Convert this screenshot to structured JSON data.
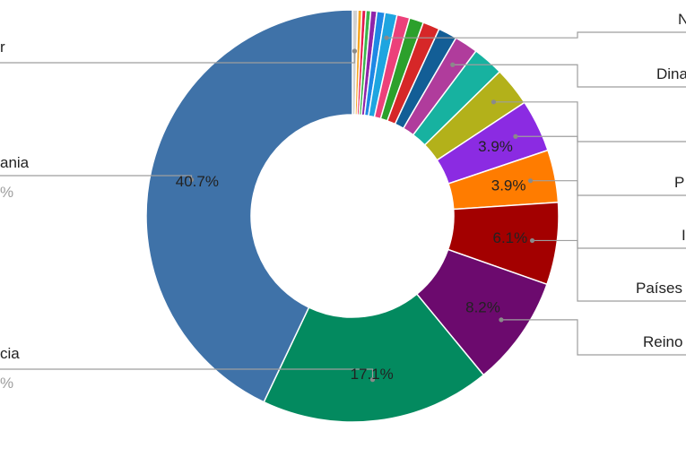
{
  "chart_data": {
    "type": "pie",
    "donut": true,
    "slices": [
      {
        "label": "…r",
        "value": 0.4,
        "color": "#d0d0d0",
        "pct_text": ""
      },
      {
        "label": "",
        "value": 0.3,
        "color": "#f5a623",
        "pct_text": ""
      },
      {
        "label": "",
        "value": 0.3,
        "color": "#e6194b",
        "pct_text": ""
      },
      {
        "label": "",
        "value": 0.35,
        "color": "#3cb44b",
        "pct_text": ""
      },
      {
        "label": "",
        "value": 0.45,
        "color": "#8e24aa",
        "pct_text": ""
      },
      {
        "label": "",
        "value": 0.6,
        "color": "#1e88e5",
        "pct_text": ""
      },
      {
        "label": "N…",
        "value": 0.9,
        "color": "#1ea5e0",
        "pct_text": ""
      },
      {
        "label": "",
        "value": 0.95,
        "color": "#ec407a",
        "pct_text": ""
      },
      {
        "label": "",
        "value": 1.05,
        "color": "#2ca02c",
        "pct_text": ""
      },
      {
        "label": "",
        "value": 1.25,
        "color": "#d62728",
        "pct_text": ""
      },
      {
        "label": "",
        "value": 1.4,
        "color": "#135e96",
        "pct_text": ""
      },
      {
        "label": "Dina…",
        "value": 1.75,
        "color": "#b03c9c",
        "pct_text": ""
      },
      {
        "label": "",
        "value": 2.3,
        "color": "#17b2a0",
        "pct_text": ""
      },
      {
        "label": "",
        "value": 2.9,
        "color": "#b3b11a",
        "pct_text": ""
      },
      {
        "label": "P…",
        "value": 3.9,
        "color": "#8b2be2",
        "pct_text": "3.9%"
      },
      {
        "label": "I…",
        "value": 3.9,
        "color": "#ff7c00",
        "pct_text": "3.9%"
      },
      {
        "label": "Países…",
        "value": 6.1,
        "color": "#a30000",
        "pct_text": "6.1%"
      },
      {
        "label": "Reino…",
        "value": 8.2,
        "color": "#6c0a6e",
        "pct_text": "8.2%"
      },
      {
        "label": "…cia",
        "value": 17.1,
        "color": "#038a5f",
        "pct_text": "17.1%"
      },
      {
        "label": "…ania",
        "value": 40.7,
        "color": "#3f72a8",
        "pct_text": "40.7%"
      }
    ],
    "right_labels": [
      "N",
      "Dina",
      "P",
      "I",
      "Países",
      "Reino"
    ],
    "left_labels": [
      {
        "name": "r",
        "sub": ""
      },
      {
        "name": "ania",
        "sub": "%"
      },
      {
        "name": "cia",
        "sub": "%"
      }
    ]
  }
}
